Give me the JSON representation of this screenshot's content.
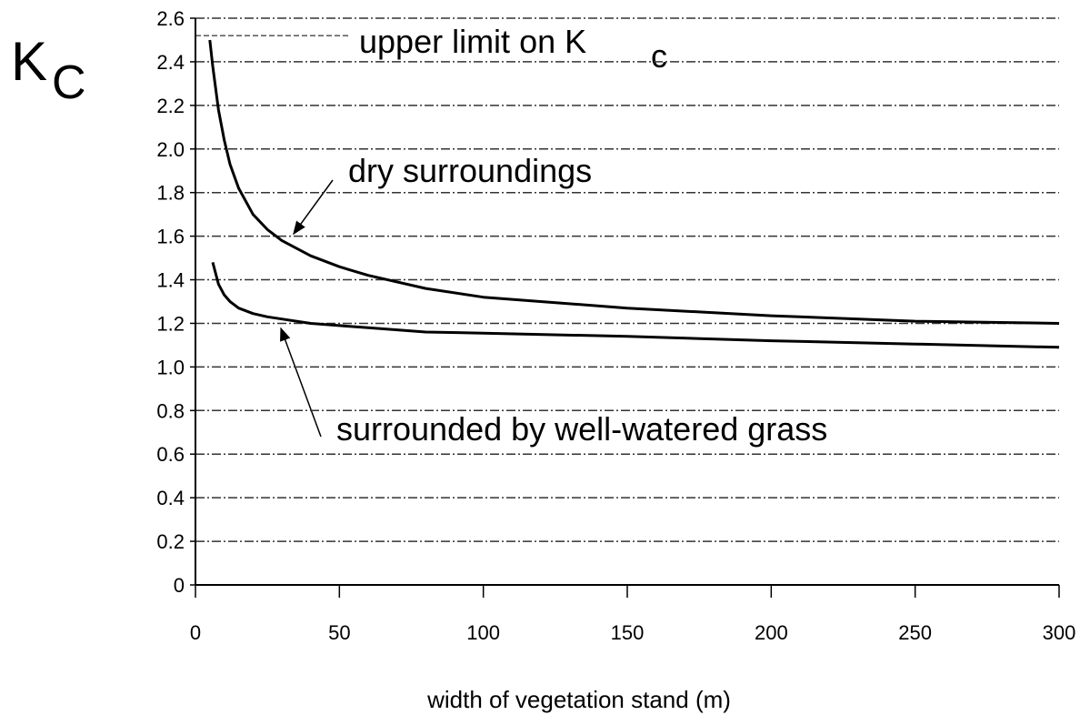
{
  "chart_data": {
    "type": "line",
    "y_label": "K",
    "y_label_sub": "C",
    "x_label": "width of vegetation stand (m)",
    "annotations": {
      "upper_limit": "upper limit on K",
      "upper_limit_sub": "c",
      "dry": "dry surroundings",
      "grass": "surrounded by well-watered grass"
    },
    "upper_limit": 2.52,
    "x": [
      5,
      6,
      8,
      10,
      12,
      15,
      20,
      25,
      30,
      40,
      50,
      60,
      80,
      100,
      150,
      200,
      250,
      300
    ],
    "series": [
      {
        "name": "dry surroundings",
        "color": "#000000",
        "values": [
          2.5,
          2.38,
          2.18,
          2.04,
          1.93,
          1.82,
          1.7,
          1.63,
          1.58,
          1.51,
          1.46,
          1.42,
          1.36,
          1.32,
          1.27,
          1.235,
          1.21,
          1.2
        ]
      },
      {
        "name": "surrounded by well-watered grass",
        "color": "#000000",
        "values": [
          null,
          1.48,
          1.38,
          1.33,
          1.3,
          1.27,
          1.245,
          1.23,
          1.22,
          1.2,
          1.19,
          1.18,
          1.16,
          1.155,
          1.14,
          1.12,
          1.105,
          1.09
        ]
      }
    ],
    "xlim": [
      0,
      300
    ],
    "xticks": [
      0,
      50,
      100,
      150,
      200,
      250,
      300
    ],
    "ylim": [
      0,
      2.6
    ],
    "yticks": [
      0,
      0.2,
      0.4,
      0.6,
      0.8,
      {
        "value": 1,
        "label": "1.0"
      },
      1.2,
      1.4,
      1.6,
      1.8,
      {
        "value": 2,
        "label": "2.0"
      },
      2.2,
      2.4,
      2.6
    ],
    "grid": true
  }
}
